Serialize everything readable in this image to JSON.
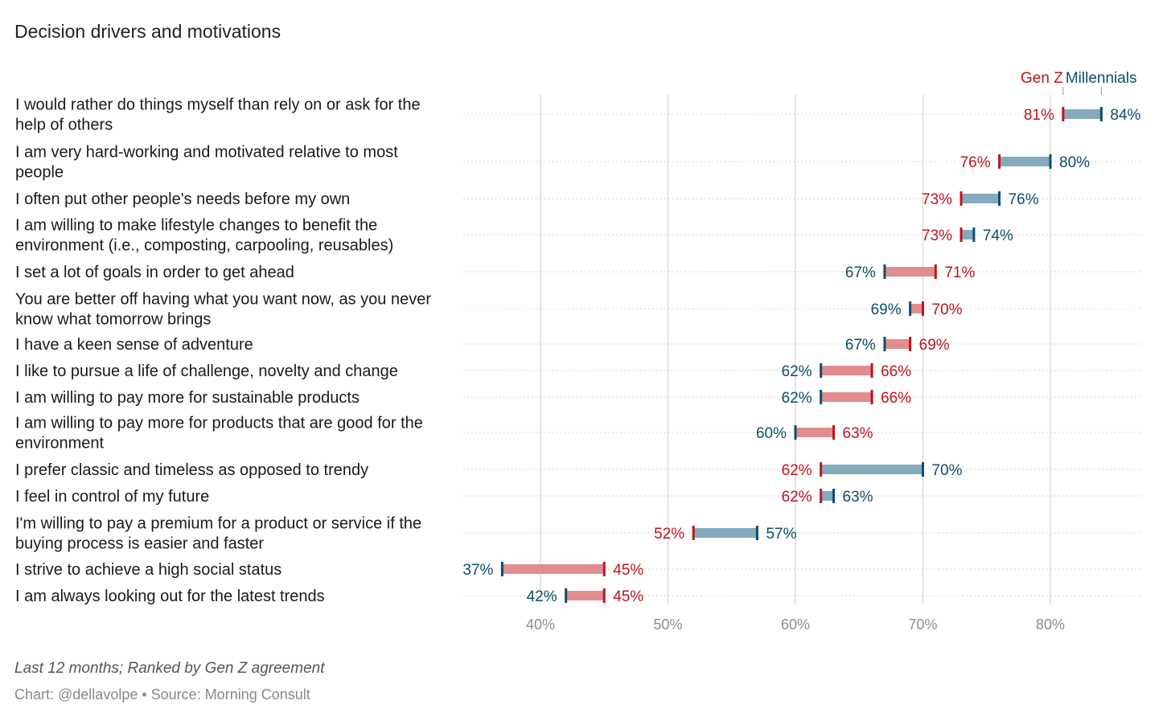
{
  "title": "Decision drivers and motivations",
  "footnote": "Last 12 months; Ranked by Gen Z agreement",
  "source": "Chart: @dellavolpe • Source: Morning Consult",
  "colors": {
    "genz": "#c0131d",
    "genz_bar": "#e38c8f",
    "millennials": "#0e4d6b",
    "millennials_bar": "#84aabd",
    "grid": "#dcdcdc",
    "row_line": "#d0d0d0"
  },
  "chart_data": {
    "type": "dumbbell",
    "xlim": [
      34,
      87
    ],
    "x_ticks": [
      40,
      50,
      60,
      70,
      80
    ],
    "x_tick_labels": [
      "40%",
      "50%",
      "60%",
      "70%",
      "80%"
    ],
    "legend": {
      "genz": "Gen Z",
      "millennials": "Millennials"
    },
    "rows": [
      {
        "label": [
          "I would rather do things myself than rely on or ask for the",
          "help of others"
        ],
        "genz": 81,
        "millennials": 84
      },
      {
        "label": [
          "I am very hard-working and motivated relative to most",
          "people"
        ],
        "genz": 76,
        "millennials": 80
      },
      {
        "label": [
          "I often put other people's needs before my own"
        ],
        "genz": 73,
        "millennials": 76
      },
      {
        "label": [
          "I am willing to make lifestyle changes to benefit the",
          "environment (i.e., composting, carpooling, reusables)"
        ],
        "genz": 73,
        "millennials": 74
      },
      {
        "label": [
          "I set a lot of goals in order to get ahead"
        ],
        "genz": 71,
        "millennials": 67
      },
      {
        "label": [
          "You are better off having what you want now, as you never",
          "know what tomorrow brings"
        ],
        "genz": 70,
        "millennials": 69
      },
      {
        "label": [
          "I have a keen sense of adventure"
        ],
        "genz": 69,
        "millennials": 67
      },
      {
        "label": [
          "I like to pursue a life of challenge, novelty and change"
        ],
        "genz": 66,
        "millennials": 62
      },
      {
        "label": [
          "I am willing to pay more for sustainable products"
        ],
        "genz": 66,
        "millennials": 62
      },
      {
        "label": [
          "I am willing to pay more for products that are good for the",
          "environment"
        ],
        "genz": 63,
        "millennials": 60
      },
      {
        "label": [
          "I prefer classic and timeless as opposed to trendy"
        ],
        "genz": 62,
        "millennials": 70
      },
      {
        "label": [
          "I feel in control of my future"
        ],
        "genz": 62,
        "millennials": 63
      },
      {
        "label": [
          "I'm willing to pay a premium for a product or service if the",
          "buying process is easier and faster"
        ],
        "genz": 52,
        "millennials": 57
      },
      {
        "label": [
          "I strive to achieve a high social status"
        ],
        "genz": 45,
        "millennials": 37
      },
      {
        "label": [
          "I am always looking out for the latest trends"
        ],
        "genz": 45,
        "millennials": 42
      }
    ]
  }
}
